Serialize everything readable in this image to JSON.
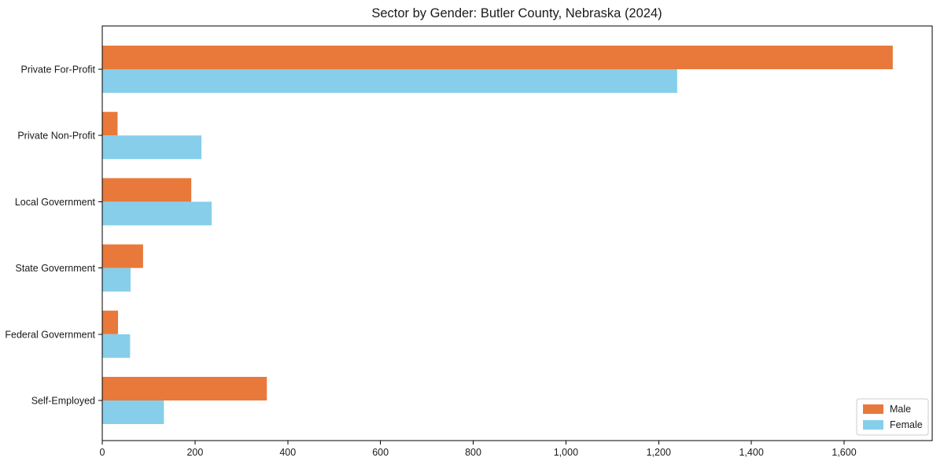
{
  "chart_data": {
    "type": "bar",
    "orientation": "horizontal",
    "title": "Sector by Gender: Butler County, Nebraska (2024)",
    "categories": [
      "Private For-Profit",
      "Private Non-Profit",
      "Local Government",
      "State Government",
      "Federal Government",
      "Self-Employed"
    ],
    "series": [
      {
        "name": "Male",
        "color": "#e8793b",
        "values": [
          1705,
          33,
          192,
          88,
          34,
          355
        ]
      },
      {
        "name": "Female",
        "color": "#87ceeb",
        "values": [
          1240,
          214,
          236,
          61,
          60,
          133
        ]
      }
    ],
    "xlabel": "",
    "ylabel": "",
    "xlim": [
      0,
      1790
    ],
    "xticks": [
      0,
      200,
      400,
      600,
      800,
      1000,
      1200,
      1400,
      1600
    ],
    "xtick_labels": [
      "0",
      "200",
      "400",
      "600",
      "800",
      "1,000",
      "1,200",
      "1,400",
      "1,600"
    ],
    "grid": false,
    "legend": {
      "position": "lower-right",
      "entries": [
        {
          "label": "Male",
          "color": "#e8793b"
        },
        {
          "label": "Female",
          "color": "#87ceeb"
        }
      ]
    },
    "colors": {
      "background": "#ffffff",
      "spine": "#000000",
      "text": "#1a1a1a",
      "legend_border": "#cccccc"
    }
  }
}
